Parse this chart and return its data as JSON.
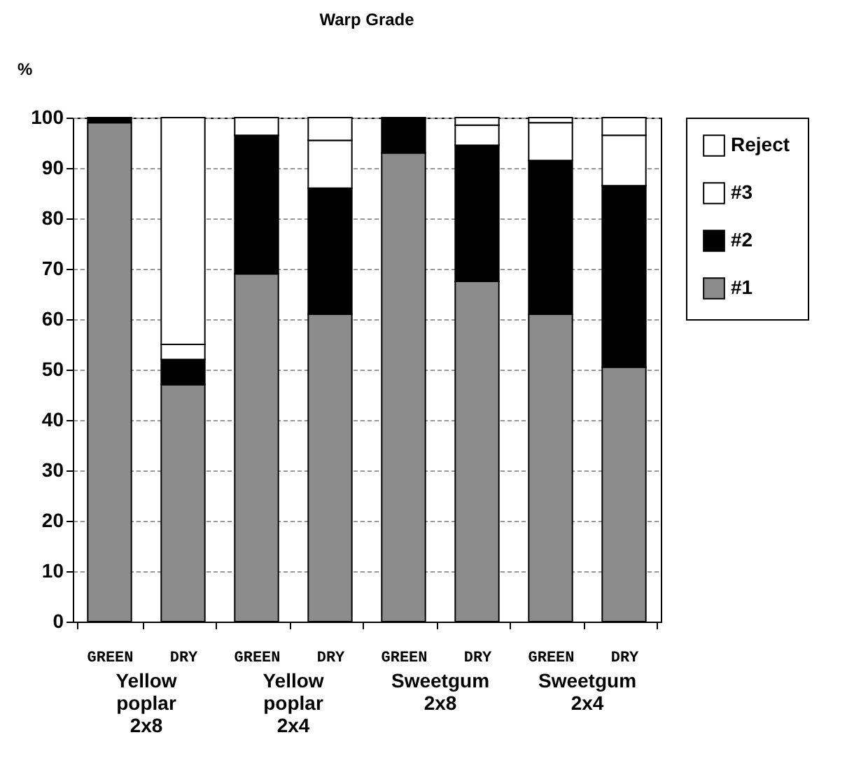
{
  "chart_data": {
    "type": "bar",
    "title": "Warp Grade",
    "ylabel": "%",
    "stacked": true,
    "categories": [
      "GREEN",
      "DRY",
      "GREEN",
      "DRY",
      "GREEN",
      "DRY",
      "GREEN",
      "DRY"
    ],
    "series": [
      {
        "name": "#1",
        "color": "#8c8c8c",
        "values": [
          99,
          47,
          69,
          61,
          93,
          67.5,
          61,
          50.5
        ]
      },
      {
        "name": "#2",
        "color": "#000000",
        "values": [
          1,
          5,
          27.5,
          25,
          7,
          27,
          30.5,
          36
        ]
      },
      {
        "name": "#3",
        "color": "#ffffff",
        "values": [
          0,
          3,
          3.5,
          9.5,
          0,
          4,
          7.5,
          10
        ]
      },
      {
        "name": "Reject",
        "color": "#ffffff",
        "values": [
          0,
          45,
          0,
          4.5,
          0,
          1.5,
          1,
          3.5
        ]
      }
    ],
    "ylim": [
      0,
      100
    ],
    "yticks": [
      0,
      10,
      20,
      30,
      40,
      50,
      60,
      70,
      80,
      90,
      100
    ],
    "grid": "y",
    "legend": "right",
    "annotations": [
      "Yellow\npoplar\n2x8",
      "Yellow\npoplar\n2x4",
      "Sweetgum\n2x8",
      "Sweetgum\n2x4"
    ]
  }
}
